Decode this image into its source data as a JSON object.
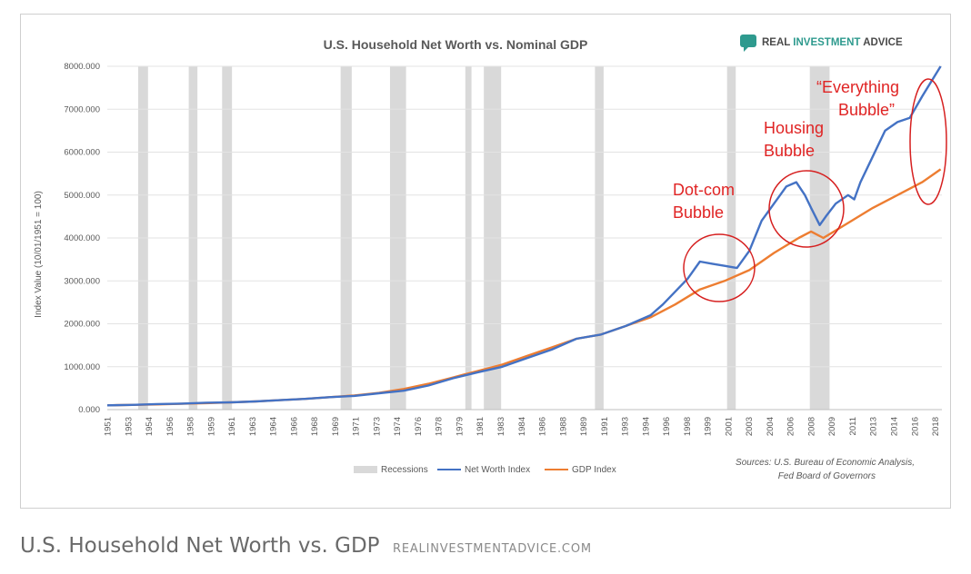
{
  "brand": {
    "name_part1": "REAL ",
    "name_part2": "INVESTMENT",
    "name_part3": " ADVICE",
    "accent": "#2e9a8e",
    "icon": "chat-bubble-icon"
  },
  "caption": {
    "title": "U.S. Household Net Worth vs. GDP",
    "source": "REALINVESTMENTADVICE.COM"
  },
  "chart_data": {
    "type": "line",
    "title": "U.S. Household Net Worth vs. Nominal GDP",
    "xlabel": "",
    "ylabel": "Index Value (10/01/1951 = 100)",
    "ylim": [
      0,
      8000
    ],
    "xlim": [
      1951,
      2018.6
    ],
    "grid": "horizontal",
    "legend_position": "bottom",
    "y_ticks": [
      "0.000",
      "1000.000",
      "2000.000",
      "3000.000",
      "4000.000",
      "5000.000",
      "6000.000",
      "7000.000",
      "8000.000"
    ],
    "x_ticks": [
      "1951",
      "1953",
      "1954",
      "1956",
      "1958",
      "1959",
      "1961",
      "1963",
      "1964",
      "1966",
      "1968",
      "1969",
      "1971",
      "1973",
      "1974",
      "1976",
      "1978",
      "1979",
      "1981",
      "1983",
      "1984",
      "1986",
      "1988",
      "1989",
      "1991",
      "1993",
      "1994",
      "1996",
      "1998",
      "1999",
      "2001",
      "2003",
      "2004",
      "2006",
      "2008",
      "2009",
      "2011",
      "2013",
      "2014",
      "2016",
      "2018"
    ],
    "recessions": [
      [
        1953.5,
        1954.3
      ],
      [
        1957.6,
        1958.3
      ],
      [
        1960.3,
        1961.1
      ],
      [
        1969.9,
        1970.8
      ],
      [
        1973.9,
        1975.2
      ],
      [
        1980.0,
        1980.5
      ],
      [
        1981.5,
        1982.9
      ],
      [
        1990.5,
        1991.2
      ],
      [
        2001.2,
        2001.9
      ],
      [
        2007.9,
        2009.5
      ]
    ],
    "series": [
      {
        "name": "Net Worth Index",
        "color": "#4472c4",
        "x": [
          1951,
          1953,
          1955,
          1957,
          1959,
          1961,
          1963,
          1965,
          1967,
          1969,
          1971,
          1973,
          1975,
          1977,
          1979,
          1981,
          1983,
          1985,
          1987,
          1989,
          1991,
          1993,
          1995,
          1996,
          1997,
          1998,
          1999,
          2000,
          2001,
          2002,
          2003,
          2004,
          2005,
          2006,
          2006.8,
          2007.5,
          2008,
          2008.7,
          2009.2,
          2010,
          2011,
          2011.5,
          2012,
          2013,
          2014,
          2015,
          2016,
          2017,
          2018.5
        ],
        "values": [
          100,
          110,
          130,
          140,
          160,
          170,
          190,
          220,
          250,
          290,
          320,
          380,
          440,
          560,
          730,
          870,
          1000,
          1200,
          1400,
          1650,
          1750,
          1950,
          2200,
          2450,
          2750,
          3050,
          3450,
          3400,
          3350,
          3300,
          3700,
          4400,
          4800,
          5200,
          5300,
          5000,
          4700,
          4300,
          4500,
          4800,
          5000,
          4900,
          5300,
          5900,
          6500,
          6700,
          6800,
          7300,
          8000
        ]
      },
      {
        "name": "GDP Index",
        "color": "#ed7d31",
        "x": [
          1951,
          1953,
          1955,
          1957,
          1959,
          1961,
          1963,
          1965,
          1967,
          1969,
          1971,
          1973,
          1975,
          1977,
          1979,
          1981,
          1983,
          1985,
          1987,
          1989,
          1991,
          1993,
          1995,
          1997,
          1999,
          2001,
          2003,
          2005,
          2007,
          2008,
          2009,
          2011,
          2013,
          2015,
          2017,
          2018.5
        ],
        "values": [
          100,
          110,
          120,
          135,
          150,
          170,
          190,
          220,
          250,
          290,
          330,
          390,
          480,
          600,
          750,
          900,
          1050,
          1250,
          1450,
          1650,
          1750,
          1950,
          2150,
          2450,
          2800,
          3000,
          3250,
          3650,
          4000,
          4150,
          4000,
          4350,
          4700,
          5000,
          5300,
          5600
        ]
      }
    ],
    "legend": {
      "recessions": "Recessions",
      "net_worth": "Net Worth Index",
      "gdp": "GDP Index"
    },
    "source_note": {
      "line1": "Sources: U.S. Bureau of Economic Analysis,",
      "line2": "Fed Board of Governors"
    },
    "annotations": [
      {
        "lines": [
          "Dot-com",
          "Bubble"
        ],
        "color": "#e02424"
      },
      {
        "lines": [
          "Housing",
          "Bubble"
        ],
        "color": "#e02424"
      },
      {
        "lines": [
          "“Everything",
          "Bubble”"
        ],
        "color": "#e02424"
      }
    ]
  }
}
